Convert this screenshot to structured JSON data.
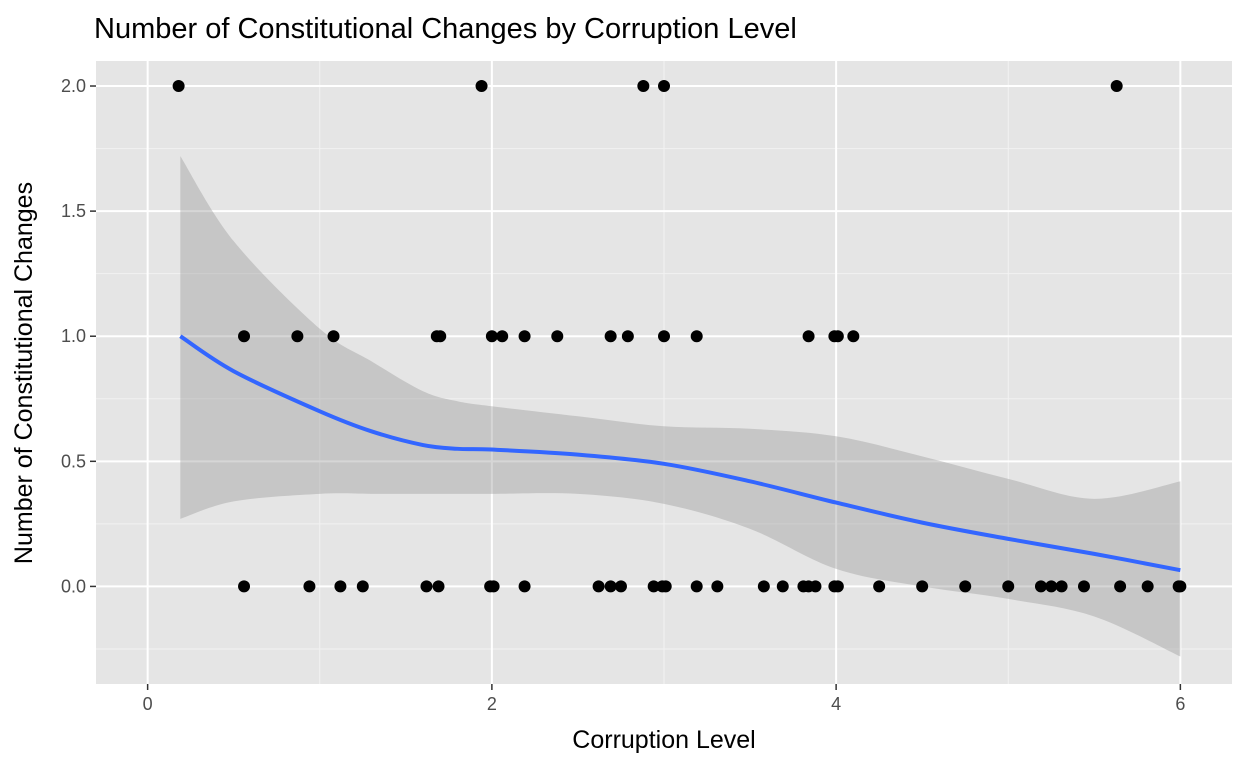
{
  "chart_data": {
    "type": "scatter",
    "title": "Number of Constitutional Changes by Corruption Level",
    "xlabel": "Corruption Level",
    "ylabel": "Number of Constitutional Changes",
    "xlim": [
      -0.3,
      6.3
    ],
    "ylim": [
      -0.39,
      2.1
    ],
    "x_ticks": [
      0,
      2,
      4,
      6
    ],
    "x_tick_labels": [
      "0",
      "2",
      "4",
      "6"
    ],
    "y_ticks": [
      0.0,
      0.5,
      1.0,
      1.5,
      2.0
    ],
    "y_tick_labels": [
      "0.0",
      "0.5",
      "1.0",
      "1.5",
      "2.0"
    ],
    "grid": true,
    "legend": "none",
    "colors": {
      "panel": "#e5e5e5",
      "grid_major": "#ffffff",
      "grid_minor": "#f2f2f2",
      "points": "#000000",
      "smooth_line": "#3366ff",
      "ribbon": "#999999"
    },
    "points": [
      {
        "x": 0.18,
        "y": 2
      },
      {
        "x": 1.94,
        "y": 2
      },
      {
        "x": 2.88,
        "y": 2
      },
      {
        "x": 3.0,
        "y": 2
      },
      {
        "x": 5.63,
        "y": 2
      },
      {
        "x": 0.56,
        "y": 1
      },
      {
        "x": 0.87,
        "y": 1
      },
      {
        "x": 1.08,
        "y": 1
      },
      {
        "x": 1.68,
        "y": 1
      },
      {
        "x": 1.7,
        "y": 1
      },
      {
        "x": 2.0,
        "y": 1
      },
      {
        "x": 2.06,
        "y": 1
      },
      {
        "x": 2.19,
        "y": 1
      },
      {
        "x": 2.38,
        "y": 1
      },
      {
        "x": 2.69,
        "y": 1
      },
      {
        "x": 2.79,
        "y": 1
      },
      {
        "x": 3.0,
        "y": 1
      },
      {
        "x": 3.19,
        "y": 1
      },
      {
        "x": 3.84,
        "y": 1
      },
      {
        "x": 3.99,
        "y": 1
      },
      {
        "x": 4.01,
        "y": 1
      },
      {
        "x": 4.1,
        "y": 1
      },
      {
        "x": 0.56,
        "y": 0
      },
      {
        "x": 0.94,
        "y": 0
      },
      {
        "x": 1.12,
        "y": 0
      },
      {
        "x": 1.25,
        "y": 0
      },
      {
        "x": 1.62,
        "y": 0
      },
      {
        "x": 1.69,
        "y": 0
      },
      {
        "x": 1.99,
        "y": 0
      },
      {
        "x": 2.01,
        "y": 0
      },
      {
        "x": 2.19,
        "y": 0
      },
      {
        "x": 2.62,
        "y": 0
      },
      {
        "x": 2.69,
        "y": 0
      },
      {
        "x": 2.75,
        "y": 0
      },
      {
        "x": 2.94,
        "y": 0
      },
      {
        "x": 2.99,
        "y": 0
      },
      {
        "x": 3.01,
        "y": 0
      },
      {
        "x": 3.19,
        "y": 0
      },
      {
        "x": 3.31,
        "y": 0
      },
      {
        "x": 3.58,
        "y": 0
      },
      {
        "x": 3.69,
        "y": 0
      },
      {
        "x": 3.81,
        "y": 0
      },
      {
        "x": 3.84,
        "y": 0
      },
      {
        "x": 3.88,
        "y": 0
      },
      {
        "x": 3.99,
        "y": 0
      },
      {
        "x": 4.01,
        "y": 0
      },
      {
        "x": 4.25,
        "y": 0
      },
      {
        "x": 4.5,
        "y": 0
      },
      {
        "x": 4.75,
        "y": 0
      },
      {
        "x": 5.0,
        "y": 0
      },
      {
        "x": 5.19,
        "y": 0
      },
      {
        "x": 5.25,
        "y": 0
      },
      {
        "x": 5.31,
        "y": 0
      },
      {
        "x": 5.44,
        "y": 0
      },
      {
        "x": 5.65,
        "y": 0
      },
      {
        "x": 5.81,
        "y": 0
      },
      {
        "x": 5.99,
        "y": 0
      },
      {
        "x": 6.0,
        "y": 0
      }
    ],
    "smooth": {
      "x": [
        0.19,
        0.5,
        1.0,
        1.3,
        1.6,
        1.8,
        2.0,
        2.5,
        3.0,
        3.5,
        4.0,
        4.5,
        5.0,
        5.5,
        6.0
      ],
      "y": [
        1.0,
        0.86,
        0.7,
        0.62,
        0.565,
        0.55,
        0.547,
        0.527,
        0.49,
        0.42,
        0.335,
        0.255,
        0.19,
        0.13,
        0.065
      ],
      "upper": [
        1.72,
        1.38,
        1.03,
        0.9,
        0.78,
        0.74,
        0.72,
        0.68,
        0.64,
        0.63,
        0.6,
        0.52,
        0.43,
        0.35,
        0.42
      ],
      "lower": [
        0.27,
        0.34,
        0.37,
        0.37,
        0.37,
        0.37,
        0.37,
        0.37,
        0.33,
        0.23,
        0.07,
        0.0,
        -0.05,
        -0.12,
        -0.28
      ]
    }
  }
}
